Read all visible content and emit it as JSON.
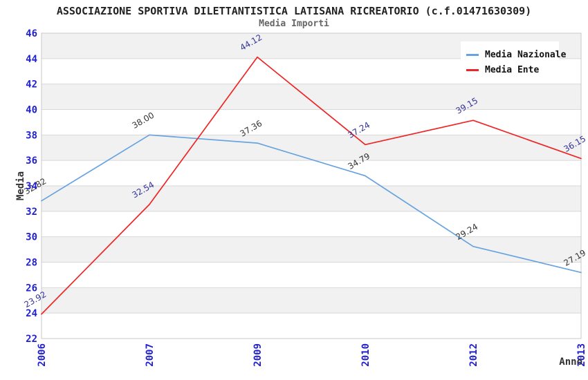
{
  "header": {
    "title": "ASSOCIAZIONE SPORTIVA DILETTANTISTICA LATISANA RICREATORIO (c.f.01471630309)",
    "subtitle": "Media Importi"
  },
  "chart_data": {
    "type": "line",
    "title": "ASSOCIAZIONE SPORTIVA DILETTANTISTICA LATISANA RICREATORIO (c.f.01471630309)",
    "subtitle": "Media Importi",
    "categories": [
      "2006",
      "2007",
      "2009",
      "2010",
      "2012",
      "2013"
    ],
    "series": [
      {
        "name": "Media Nazionale",
        "color": "#66A3DF",
        "label_color": "#333333",
        "values": [
          32.82,
          38.0,
          37.36,
          34.79,
          29.24,
          27.19
        ]
      },
      {
        "name": "Media Ente",
        "color": "#EE2525",
        "label_color": "#333399",
        "values": [
          23.92,
          32.54,
          44.12,
          37.24,
          39.15,
          36.15
        ]
      }
    ],
    "xlabel": "Anno",
    "ylabel": "Media",
    "ylim": [
      22,
      46
    ],
    "ytick_step": 2,
    "grid": true,
    "legend_position": "top-right",
    "colors": {
      "band": "#f1f1f1",
      "grid": "#d8d8d8",
      "border": "#c9c9c9",
      "axis_tick_label": "#2121CE",
      "axis_title": "#333333"
    }
  }
}
